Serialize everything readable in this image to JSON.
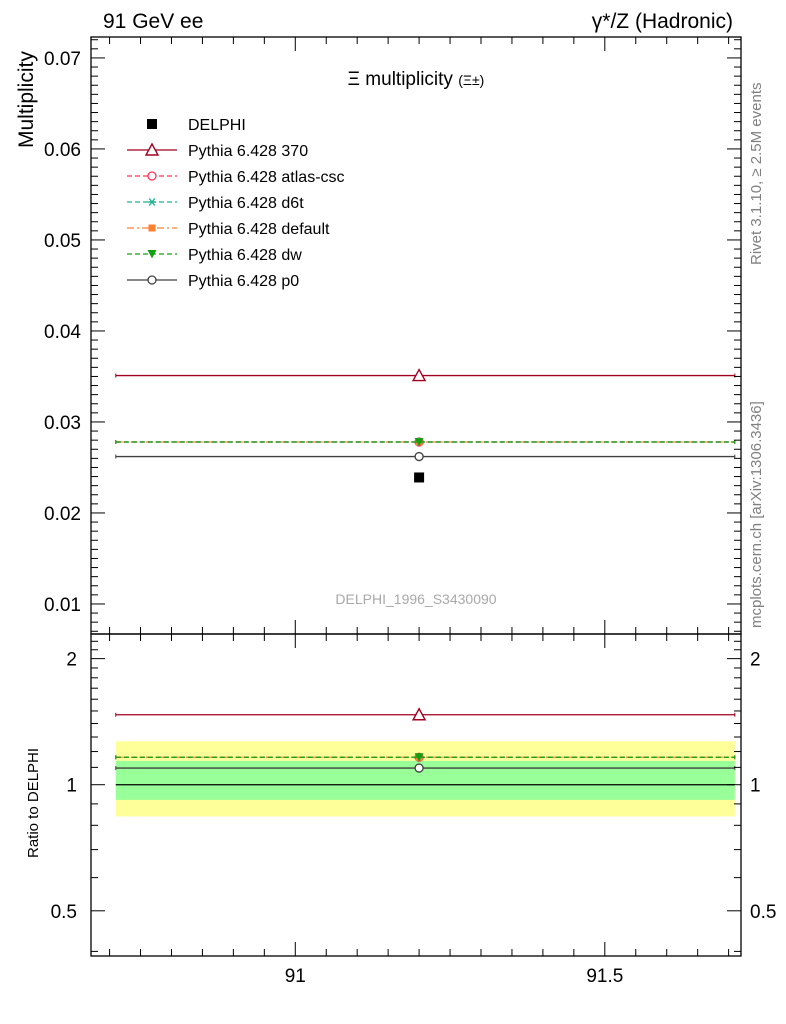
{
  "header": {
    "left": "91 GeV ee",
    "right": "γ*/Z (Hadronic)"
  },
  "side_labels": {
    "rivet": "Rivet 3.1.10, ≥ 2.5M events",
    "mcplots": "mcplots.cern.ch [arXiv:1306.3436]"
  },
  "watermark": "DELPHI_1996_S3430090",
  "chart_data": [
    {
      "type": "scatter",
      "title": "Ξ multiplicity",
      "title_suffix": "(Ξ±)",
      "ylabel": "Multiplicity",
      "xlim": [
        90.67,
        91.72
      ],
      "ylim": [
        0.0067,
        0.0723
      ],
      "x_ticks": [
        91,
        91.5
      ],
      "y_ticks": [
        0.01,
        0.02,
        0.03,
        0.04,
        0.05,
        0.06,
        0.07
      ],
      "y_tick_labels": [
        "0.01",
        "0.02",
        "0.03",
        "0.04",
        "0.05",
        "0.06",
        "0.07"
      ],
      "legend_position": "top-left",
      "data_point": {
        "name": "DELPHI",
        "x": 91.2,
        "y": 0.0239,
        "color": "#000000"
      },
      "series": [
        {
          "name": "Pythia 6.428 370",
          "x": [
            90.71,
            91.71
          ],
          "y": 0.0351,
          "marker_x": 91.2,
          "color": "#a00020",
          "dash": "solid",
          "marker": "triangle-open"
        },
        {
          "name": "Pythia 6.428 atlas-csc",
          "x": [
            90.71,
            91.71
          ],
          "y": 0.0278,
          "marker_x": 91.2,
          "color": "#ff3355",
          "dash": "dashed",
          "marker": "circle-open"
        },
        {
          "name": "Pythia 6.428 d6t",
          "x": [
            90.71,
            91.71
          ],
          "y": 0.0278,
          "marker_x": 91.2,
          "color": "#20b090",
          "dash": "dashed",
          "marker": "asterisk"
        },
        {
          "name": "Pythia 6.428 default",
          "x": [
            90.71,
            91.71
          ],
          "y": 0.0278,
          "marker_x": 91.2,
          "color": "#ff8030",
          "dash": "dashdot",
          "marker": "square"
        },
        {
          "name": "Pythia 6.428 dw",
          "x": [
            90.71,
            91.71
          ],
          "y": 0.0278,
          "marker_x": 91.2,
          "color": "#10a010",
          "dash": "dashed",
          "marker": "triangle-down"
        },
        {
          "name": "Pythia 6.428 p0",
          "x": [
            90.71,
            91.71
          ],
          "y": 0.0262,
          "marker_x": 91.2,
          "color": "#404040",
          "dash": "solid",
          "marker": "circle-open"
        }
      ]
    },
    {
      "type": "line",
      "ylabel": "Ratio to DELPHI",
      "xlim": [
        90.67,
        91.72
      ],
      "ylim": [
        0.39,
        2.29
      ],
      "x_ticks": [
        91,
        91.5
      ],
      "x_tick_labels": [
        "91",
        "91.5"
      ],
      "y_ticks": [
        0.5,
        1,
        2
      ],
      "y_tick_labels": [
        "0.5",
        "1",
        "2"
      ],
      "bands": [
        {
          "label": "yellow",
          "lo": 0.84,
          "hi": 1.27,
          "color": "#ffff99"
        },
        {
          "label": "green",
          "lo": 0.92,
          "hi": 1.14,
          "color": "#99ff99"
        }
      ],
      "reference_value": 1.0,
      "series": [
        {
          "name": "Pythia 6.428 370",
          "y": 1.469,
          "color": "#a00020",
          "dash": "solid",
          "marker": "triangle-open"
        },
        {
          "name": "Pythia 6.428 atlas-csc",
          "y": 1.163,
          "color": "#ff3355",
          "dash": "dashed",
          "marker": "circle-open"
        },
        {
          "name": "Pythia 6.428 d6t",
          "y": 1.163,
          "color": "#20b090",
          "dash": "dashed",
          "marker": "asterisk"
        },
        {
          "name": "Pythia 6.428 default",
          "y": 1.163,
          "color": "#ff8030",
          "dash": "dashdot",
          "marker": "square"
        },
        {
          "name": "Pythia 6.428 dw",
          "y": 1.163,
          "color": "#10a010",
          "dash": "dashed",
          "marker": "triangle-down"
        },
        {
          "name": "Pythia 6.428 p0",
          "y": 1.096,
          "color": "#404040",
          "dash": "solid",
          "marker": "circle-open"
        }
      ]
    }
  ]
}
